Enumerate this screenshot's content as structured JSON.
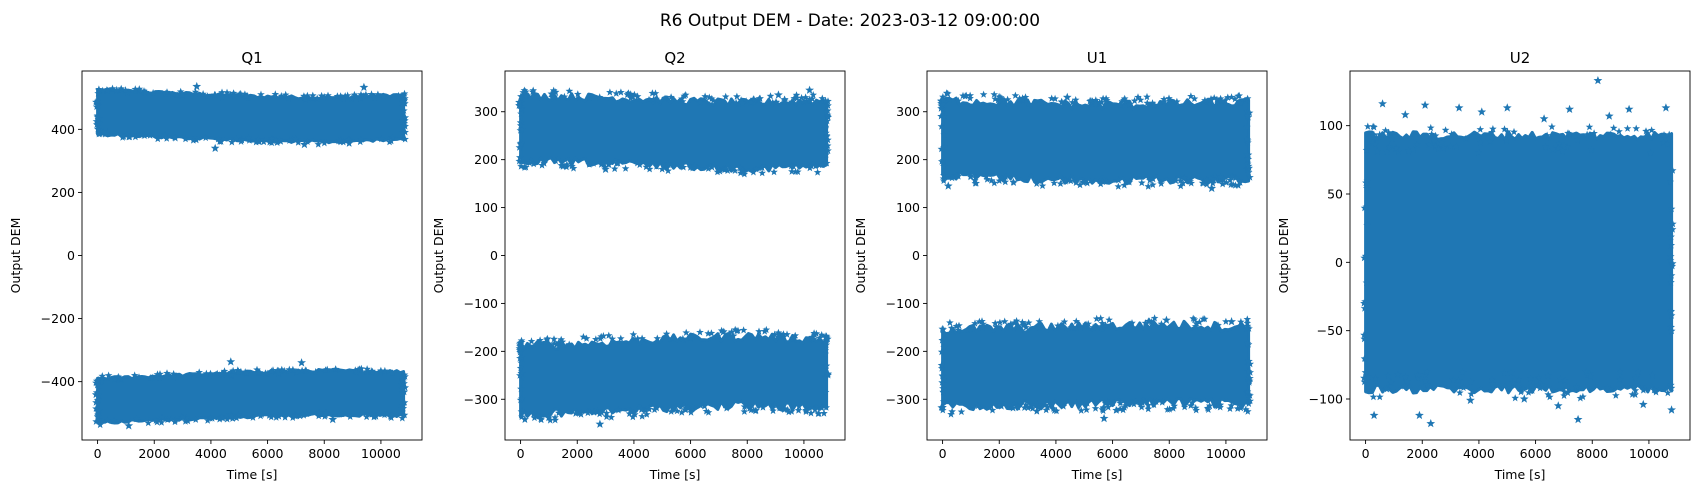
{
  "figure": {
    "title": "R6 Output DEM - Date: 2023-03-12 09:00:00"
  },
  "colors": {
    "series": "#1f77b4",
    "axes": "#000000",
    "background": "#ffffff"
  },
  "chart_data": [
    {
      "type": "scatter",
      "marker": "star",
      "title": "Q1",
      "xlabel": "Time [s]",
      "ylabel": "Output DEM",
      "xlim": [
        -550,
        11450
      ],
      "ylim": [
        -585,
        585
      ],
      "xticks": [
        0,
        2000,
        4000,
        6000,
        8000,
        10000
      ],
      "yticks": [
        -400,
        -200,
        0,
        200,
        400
      ],
      "ytick_labels": [
        "−400",
        "−200",
        "0",
        "200",
        "400"
      ],
      "x_range": [
        0,
        10800
      ],
      "bands": [
        {
          "center": [
            455,
            445,
            435,
            430,
            440
          ],
          "core_halfwidth": 50,
          "edge": [
            368,
            522
          ]
        },
        {
          "center": [
            -460,
            -450,
            -440,
            -435,
            -438
          ],
          "core_halfwidth": 50,
          "edge": [
            -522,
            -368
          ]
        }
      ],
      "outliers": [
        [
          3500,
          536
        ],
        [
          9400,
          533
        ],
        [
          4150,
          340
        ],
        [
          7300,
          352
        ],
        [
          4700,
          -337
        ],
        [
          7200,
          -340
        ],
        [
          1100,
          -540
        ],
        [
          8300,
          -520
        ]
      ]
    },
    {
      "type": "scatter",
      "marker": "star",
      "title": "Q2",
      "xlabel": "Time [s]",
      "ylabel": "Output DEM",
      "xlim": [
        -550,
        11450
      ],
      "ylim": [
        -385,
        385
      ],
      "xticks": [
        0,
        2000,
        4000,
        6000,
        8000,
        10000
      ],
      "yticks": [
        -300,
        -200,
        -100,
        0,
        100,
        200,
        300
      ],
      "ytick_labels": [
        "−300",
        "−200",
        "−100",
        "0",
        "100",
        "200",
        "300"
      ],
      "x_range": [
        0,
        10800
      ],
      "bands": [
        {
          "center": [
            265,
            262,
            255,
            250,
            255
          ],
          "core_halfwidth": 35,
          "edge": [
            180,
            340
          ]
        },
        {
          "center": [
            -260,
            -255,
            -245,
            -240,
            -248
          ],
          "core_halfwidth": 35,
          "edge": [
            -345,
            -175
          ]
        }
      ],
      "outliers": [
        [
          10200,
          345
        ],
        [
          9100,
          335
        ],
        [
          7500,
          -168
        ],
        [
          2800,
          -352
        ],
        [
          0,
          -190
        ],
        [
          5200,
          190
        ],
        [
          3000,
          180
        ]
      ]
    },
    {
      "type": "scatter",
      "marker": "star",
      "title": "U1",
      "xlabel": "Time [s]",
      "ylabel": "Output DEM",
      "xlim": [
        -550,
        11450
      ],
      "ylim": [
        -385,
        385
      ],
      "xticks": [
        0,
        2000,
        4000,
        6000,
        8000,
        10000
      ],
      "yticks": [
        -300,
        -200,
        -100,
        0,
        100,
        200,
        300
      ],
      "ytick_labels": [
        "−300",
        "−200",
        "−100",
        "0",
        "100",
        "200",
        "300"
      ],
      "x_range": [
        0,
        10800
      ],
      "bands": [
        {
          "center": [
            245,
            240,
            235,
            238,
            240
          ],
          "core_halfwidth": 40,
          "edge": [
            150,
            335
          ]
        },
        {
          "center": [
            -235,
            -232,
            -228,
            -225,
            -230
          ],
          "core_halfwidth": 40,
          "edge": [
            -335,
            -145
          ]
        }
      ],
      "outliers": [
        [
          7900,
          -135
        ],
        [
          10200,
          -138
        ],
        [
          4400,
          330
        ],
        [
          9500,
          140
        ],
        [
          5700,
          -340
        ],
        [
          200,
          145
        ]
      ]
    },
    {
      "type": "scatter",
      "marker": "star",
      "title": "U2",
      "xlabel": "Time [s]",
      "ylabel": "Output DEM",
      "xlim": [
        -550,
        11450
      ],
      "ylim": [
        -130,
        140
      ],
      "xticks": [
        0,
        2000,
        4000,
        6000,
        8000,
        10000
      ],
      "yticks": [
        -100,
        -50,
        0,
        50,
        100
      ],
      "ytick_labels": [
        "−100",
        "−50",
        "0",
        "50",
        "100"
      ],
      "x_range": [
        0,
        10800
      ],
      "bands": [
        {
          "center": [
            0,
            0,
            0,
            0,
            0
          ],
          "core_halfwidth": 80,
          "edge": [
            -100,
            95
          ]
        }
      ],
      "outliers": [
        [
          8200,
          133
        ],
        [
          600,
          116
        ],
        [
          2100,
          115
        ],
        [
          3300,
          113
        ],
        [
          5000,
          113
        ],
        [
          7200,
          112
        ],
        [
          9300,
          112
        ],
        [
          10600,
          113
        ],
        [
          1400,
          108
        ],
        [
          4100,
          110
        ],
        [
          6300,
          105
        ],
        [
          8600,
          107
        ],
        [
          300,
          -112
        ],
        [
          2300,
          -118
        ],
        [
          7500,
          -115
        ],
        [
          1900,
          -112
        ],
        [
          5600,
          -100
        ],
        [
          9800,
          -104
        ],
        [
          10800,
          -108
        ],
        [
          3700,
          -101
        ],
        [
          6800,
          -105
        ]
      ]
    }
  ]
}
